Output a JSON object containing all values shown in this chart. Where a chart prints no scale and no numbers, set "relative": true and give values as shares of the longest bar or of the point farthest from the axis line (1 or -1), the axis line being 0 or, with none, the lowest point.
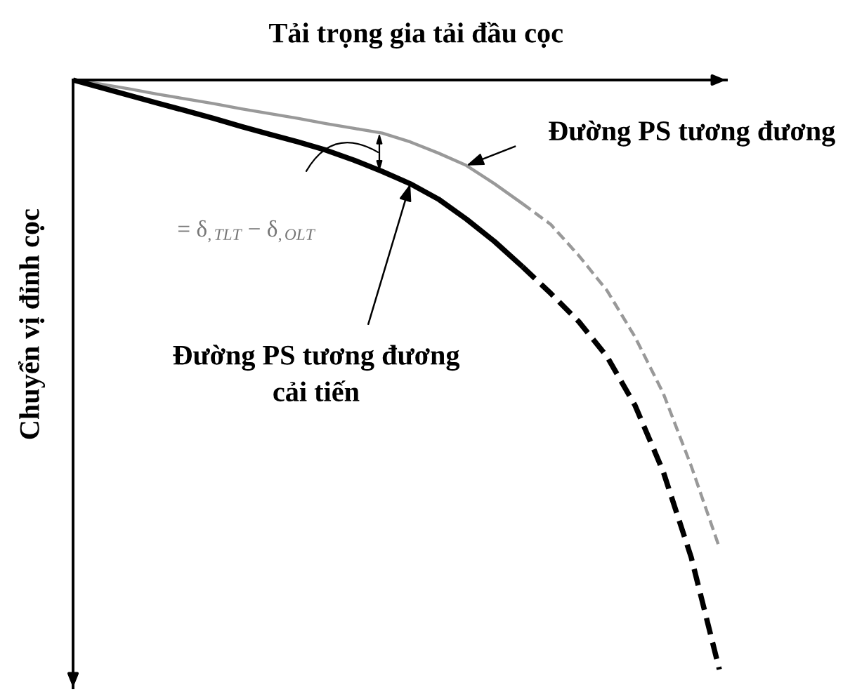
{
  "chart_data": {
    "type": "line",
    "relative": true,
    "xlabel": "Tải trọng gia tải đầu cọc",
    "ylabel": "Chuyển vị đỉnh cọc",
    "categories": [
      null,
      null,
      null,
      null,
      null,
      null,
      null,
      null,
      null,
      null,
      null,
      null,
      null,
      null,
      null,
      null,
      null,
      null,
      null,
      null,
      null,
      null,
      null,
      null
    ],
    "series": [
      {
        "name": "Đường PS tương đương",
        "color": "#999999",
        "line_style": "solid",
        "values": [
          0,
          -0.007,
          -0.015,
          -0.024,
          -0.032,
          -0.04,
          -0.049,
          -0.057,
          -0.065,
          -0.074,
          -0.082,
          -0.09,
          -0.105,
          -0.124,
          -0.145,
          -0.176,
          -0.21,
          null,
          null,
          null,
          null,
          null,
          null,
          null
        ]
      },
      {
        "color": "#999999",
        "line_style": "dashed",
        "values": [
          null,
          null,
          null,
          null,
          null,
          null,
          null,
          null,
          null,
          null,
          null,
          null,
          null,
          null,
          null,
          null,
          -0.21,
          -0.245,
          -0.298,
          -0.357,
          -0.436,
          -0.531,
          -0.655,
          -0.793
        ]
      },
      {
        "name": "Đường PS tương đương\ncải tiến",
        "color": "#000000",
        "line_style": "solid",
        "values": [
          0,
          -0.013,
          -0.026,
          -0.039,
          -0.052,
          -0.065,
          -0.079,
          -0.092,
          -0.105,
          -0.119,
          -0.136,
          -0.155,
          -0.176,
          -0.202,
          -0.236,
          -0.274,
          -0.317,
          null,
          null,
          null,
          null,
          null,
          null,
          null
        ]
      },
      {
        "color": "#000000",
        "line_style": "dashed",
        "values": [
          null,
          null,
          null,
          null,
          null,
          null,
          null,
          null,
          null,
          null,
          null,
          null,
          null,
          null,
          null,
          null,
          -0.317,
          -0.362,
          -0.41,
          -0.469,
          -0.552,
          -0.664,
          -0.81,
          -1
        ]
      }
    ],
    "annotations": [
      "= δ$_{,TLT}$ − δ$_{,OLT}$"
    ]
  }
}
